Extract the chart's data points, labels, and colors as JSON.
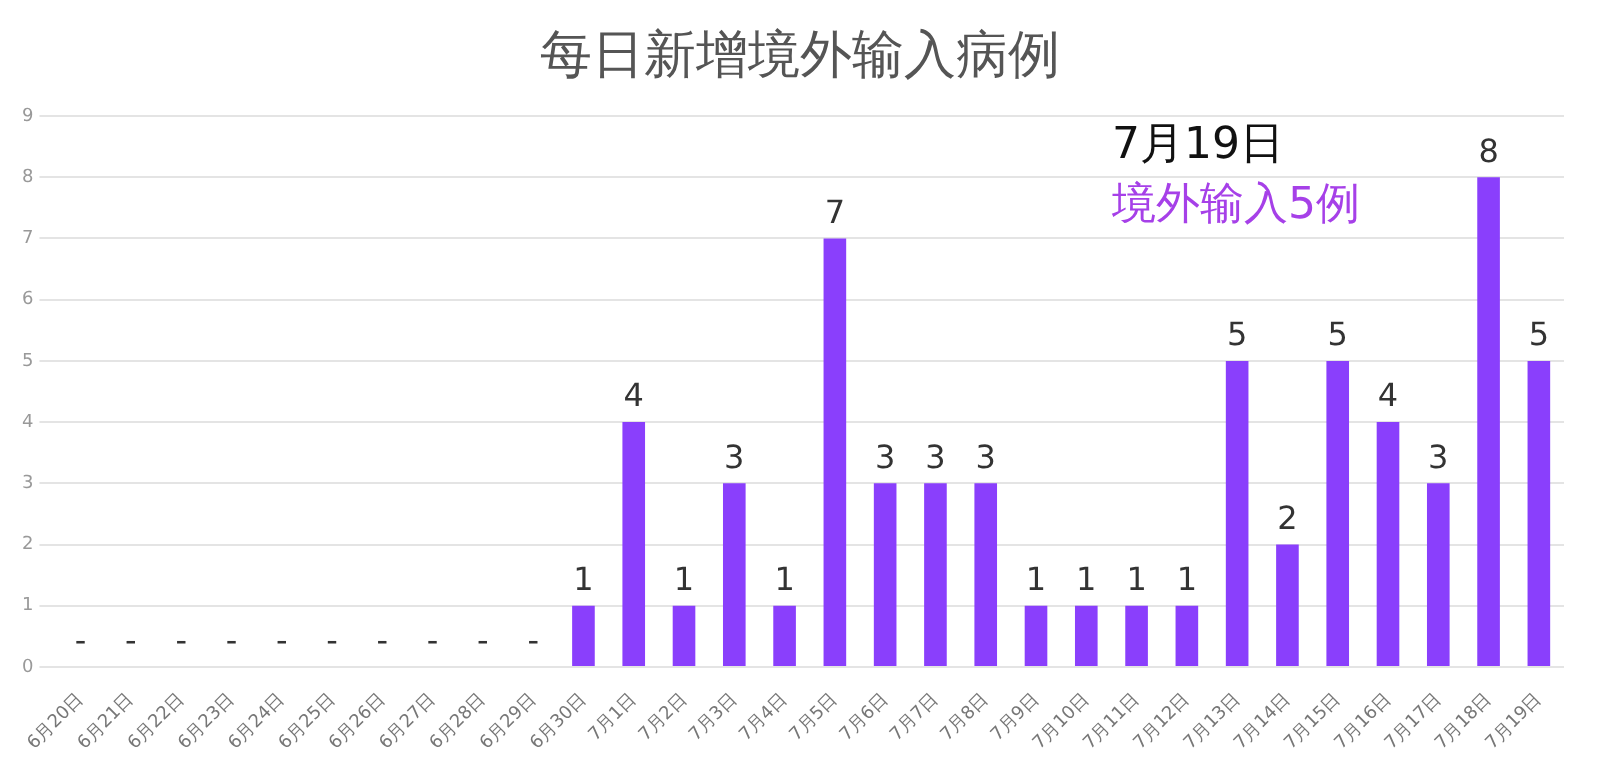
{
  "chart_data": {
    "type": "bar",
    "title": "每日新增境外输入病例",
    "categories": [
      "6月20日",
      "6月21日",
      "6月22日",
      "6月23日",
      "6月24日",
      "6月25日",
      "6月26日",
      "6月27日",
      "6月28日",
      "6月29日",
      "6月30日",
      "7月1日",
      "7月2日",
      "7月3日",
      "7月4日",
      "7月5日",
      "7月6日",
      "7月7日",
      "7月8日",
      "7月9日",
      "7月10日",
      "7月11日",
      "7月12日",
      "7月13日",
      "7月14日",
      "7月15日",
      "7月16日",
      "7月17日",
      "7月18日",
      "7月19日"
    ],
    "values": [
      0,
      0,
      0,
      0,
      0,
      0,
      0,
      0,
      0,
      0,
      1,
      4,
      1,
      3,
      1,
      7,
      3,
      3,
      3,
      1,
      1,
      1,
      1,
      5,
      2,
      5,
      4,
      3,
      8,
      5
    ],
    "value_labels": [
      "-",
      "-",
      "-",
      "-",
      "-",
      "-",
      "-",
      "-",
      "-",
      "-",
      "1",
      "4",
      "1",
      "3",
      "1",
      "7",
      "3",
      "3",
      "3",
      "1",
      "1",
      "1",
      "1",
      "5",
      "2",
      "5",
      "4",
      "3",
      "8",
      "5"
    ],
    "color": "#8a3ffc",
    "ylim": [
      0,
      9
    ],
    "yticks": [
      0,
      1,
      2,
      3,
      4,
      5,
      6,
      7,
      8,
      9
    ],
    "grid": "y",
    "annotations": [
      "7月19日",
      "境外输入5例"
    ]
  }
}
